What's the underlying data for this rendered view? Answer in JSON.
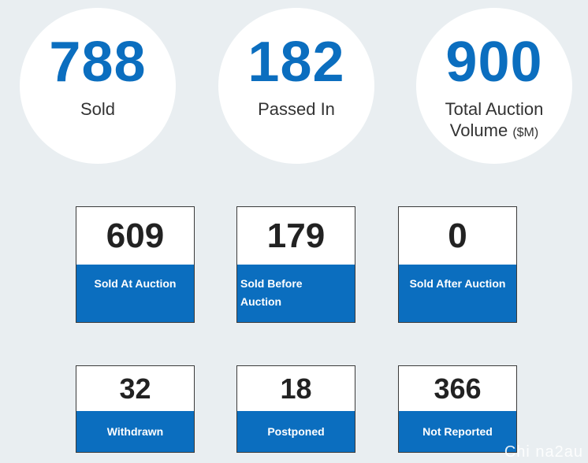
{
  "colors": {
    "accent": "#0b6ebf",
    "background": "#e9eef1",
    "card_value_text": "#222222"
  },
  "summary": {
    "sold": {
      "value": "788",
      "label": "Sold"
    },
    "passed_in": {
      "value": "182",
      "label": "Passed In"
    },
    "volume": {
      "value": "900",
      "label_line1": "Total Auction",
      "label_line2": "Volume",
      "unit": "($M)"
    }
  },
  "cards": {
    "sold_at_auction": {
      "value": "609",
      "label": "Sold At Auction"
    },
    "sold_before_auction": {
      "value": "179",
      "label_line1": "Sold Before",
      "label_line2": "Auction"
    },
    "sold_after_auction": {
      "value": "0",
      "label": "Sold After Auction"
    },
    "withdrawn": {
      "value": "32",
      "label": "Withdrawn"
    },
    "postponed": {
      "value": "18",
      "label": "Postponed"
    },
    "not_reported": {
      "value": "366",
      "label": "Not Reported"
    }
  },
  "watermark": "Chi na2au"
}
